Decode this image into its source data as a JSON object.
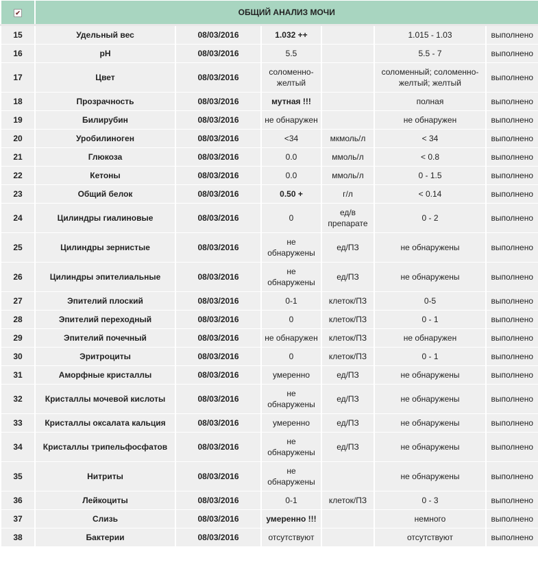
{
  "header": {
    "title": "ОБЩИЙ АНАЛИЗ МОЧИ",
    "checkbox_checked": true
  },
  "colors": {
    "header_bg": "#a8d5c0",
    "cell_bg": "#efefef"
  },
  "rows": [
    {
      "n": "15",
      "name": "Удельный вес",
      "date": "08/03/2016",
      "value": "1.032 ++",
      "bold": true,
      "unit": "",
      "ref": "1.015 - 1.03",
      "status": "выполнено"
    },
    {
      "n": "16",
      "name": "pH",
      "date": "08/03/2016",
      "value": "5.5",
      "bold": false,
      "unit": "",
      "ref": "5.5 - 7",
      "status": "выполнено"
    },
    {
      "n": "17",
      "name": "Цвет",
      "date": "08/03/2016",
      "value": "соломенно-желтый",
      "bold": false,
      "unit": "",
      "ref": "соломенный; соломенно-желтый; желтый",
      "status": "выполнено"
    },
    {
      "n": "18",
      "name": "Прозрачность",
      "date": "08/03/2016",
      "value": "мутная !!!",
      "bold": true,
      "unit": "",
      "ref": "полная",
      "status": "выполнено"
    },
    {
      "n": "19",
      "name": "Билирубин",
      "date": "08/03/2016",
      "value": "не обнаружен",
      "bold": false,
      "unit": "",
      "ref": "не обнаружен",
      "status": "выполнено"
    },
    {
      "n": "20",
      "name": "Уробилиноген",
      "date": "08/03/2016",
      "value": "<34",
      "bold": false,
      "unit": "мкмоль/л",
      "ref": "< 34",
      "status": "выполнено"
    },
    {
      "n": "21",
      "name": "Глюкоза",
      "date": "08/03/2016",
      "value": "0.0",
      "bold": false,
      "unit": "ммоль/л",
      "ref": "< 0.8",
      "status": "выполнено"
    },
    {
      "n": "22",
      "name": "Кетоны",
      "date": "08/03/2016",
      "value": "0.0",
      "bold": false,
      "unit": "ммоль/л",
      "ref": "0 - 1.5",
      "status": "выполнено"
    },
    {
      "n": "23",
      "name": "Общий белок",
      "date": "08/03/2016",
      "value": "0.50 +",
      "bold": true,
      "unit": "г/л",
      "ref": "< 0.14",
      "status": "выполнено"
    },
    {
      "n": "24",
      "name": "Цилиндры гиалиновые",
      "date": "08/03/2016",
      "value": "0",
      "bold": false,
      "unit": "ед/в препарате",
      "ref": "0 - 2",
      "status": "выполнено"
    },
    {
      "n": "25",
      "name": "Цилиндры зернистые",
      "date": "08/03/2016",
      "value": "не обнаружены",
      "bold": false,
      "unit": "ед/ПЗ",
      "ref": "не обнаружены",
      "status": "выполнено"
    },
    {
      "n": "26",
      "name": "Цилиндры эпителиальные",
      "date": "08/03/2016",
      "value": "не обнаружены",
      "bold": false,
      "unit": "ед/ПЗ",
      "ref": "не обнаружены",
      "status": "выполнено"
    },
    {
      "n": "27",
      "name": "Эпителий плоский",
      "date": "08/03/2016",
      "value": "0-1",
      "bold": false,
      "unit": "клеток/ПЗ",
      "ref": "0-5",
      "status": "выполнено"
    },
    {
      "n": "28",
      "name": "Эпителий переходный",
      "date": "08/03/2016",
      "value": "0",
      "bold": false,
      "unit": "клеток/ПЗ",
      "ref": "0 - 1",
      "status": "выполнено"
    },
    {
      "n": "29",
      "name": "Эпителий почечный",
      "date": "08/03/2016",
      "value": "не обнаружен",
      "bold": false,
      "unit": "клеток/ПЗ",
      "ref": "не обнаружен",
      "status": "выполнено"
    },
    {
      "n": "30",
      "name": "Эритроциты",
      "date": "08/03/2016",
      "value": "0",
      "bold": false,
      "unit": "клеток/ПЗ",
      "ref": "0 - 1",
      "status": "выполнено"
    },
    {
      "n": "31",
      "name": "Аморфные кристаллы",
      "date": "08/03/2016",
      "value": "умеренно",
      "bold": false,
      "unit": "ед/ПЗ",
      "ref": "не обнаружены",
      "status": "выполнено"
    },
    {
      "n": "32",
      "name": "Кристаллы мочевой кислоты",
      "date": "08/03/2016",
      "value": "не обнаружены",
      "bold": false,
      "unit": "ед/ПЗ",
      "ref": "не обнаружены",
      "status": "выполнено"
    },
    {
      "n": "33",
      "name": "Кристаллы оксалата кальция",
      "date": "08/03/2016",
      "value": "умеренно",
      "bold": false,
      "unit": "ед/ПЗ",
      "ref": "не обнаружены",
      "status": "выполнено"
    },
    {
      "n": "34",
      "name": "Кристаллы трипельфосфатов",
      "date": "08/03/2016",
      "value": "не обнаружены",
      "bold": false,
      "unit": "ед/ПЗ",
      "ref": "не обнаружены",
      "status": "выполнено"
    },
    {
      "n": "35",
      "name": "Нитриты",
      "date": "08/03/2016",
      "value": "не обнаружены",
      "bold": false,
      "unit": "",
      "ref": "не обнаружены",
      "status": "выполнено"
    },
    {
      "n": "36",
      "name": "Лейкоциты",
      "date": "08/03/2016",
      "value": "0-1",
      "bold": false,
      "unit": "клеток/ПЗ",
      "ref": "0 - 3",
      "status": "выполнено"
    },
    {
      "n": "37",
      "name": "Слизь",
      "date": "08/03/2016",
      "value": "умеренно !!!",
      "bold": true,
      "unit": "",
      "ref": "немного",
      "status": "выполнено"
    },
    {
      "n": "38",
      "name": "Бактерии",
      "date": "08/03/2016",
      "value": "отсутствуют",
      "bold": false,
      "unit": "",
      "ref": "отсутствуют",
      "status": "выполнено"
    }
  ]
}
